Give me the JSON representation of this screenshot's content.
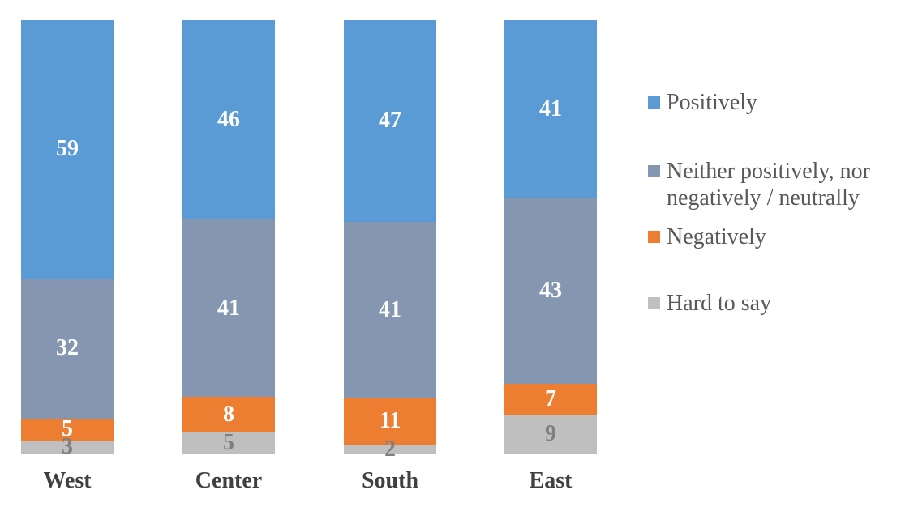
{
  "chart_data": {
    "type": "bar",
    "variant": "stacked-100-percent-column",
    "orientation": "vertical",
    "title": "",
    "xlabel": "",
    "ylabel": "",
    "axis_lines": "none",
    "grid": false,
    "data_labels": true,
    "legend_position": "right",
    "categories": [
      "West",
      "Center",
      "South",
      "East"
    ],
    "series": [
      {
        "name": "Positively",
        "color": "#5B9BD5",
        "label_color": "#FFFFFF",
        "values": [
          59,
          46,
          47,
          41
        ]
      },
      {
        "name": "Neither positively, nor negatively / neutrally",
        "color": "#8496B0",
        "label_color": "#FFFFFF",
        "values": [
          32,
          41,
          41,
          43
        ]
      },
      {
        "name": "Negatively",
        "color": "#ED7D31",
        "label_color": "#FFFFFF",
        "values": [
          5,
          8,
          11,
          7
        ]
      },
      {
        "name": "Hard to say",
        "color": "#BFBFBF",
        "label_color": "#7F7F7F",
        "values": [
          3,
          5,
          2,
          9
        ]
      }
    ]
  }
}
